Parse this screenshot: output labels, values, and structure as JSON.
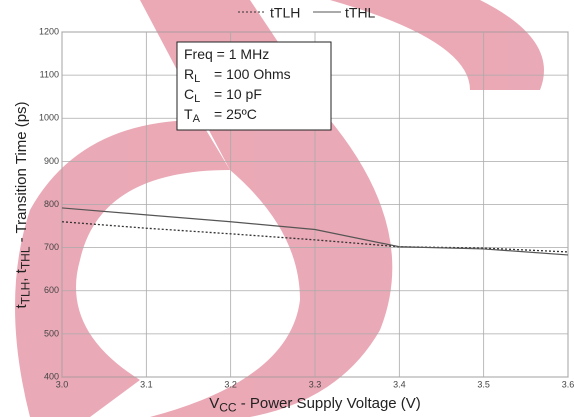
{
  "chart_data": {
    "type": "line",
    "x": [
      3.0,
      3.1,
      3.2,
      3.3,
      3.4,
      3.5,
      3.6
    ],
    "series": [
      {
        "name": "tTLH",
        "color": "#333333",
        "dash": true,
        "values": [
          760,
          745,
          732,
          718,
          702,
          699,
          690
        ]
      },
      {
        "name": "tTHL",
        "color": "#555555",
        "dash": false,
        "values": [
          792,
          776,
          760,
          742,
          702,
          697,
          683
        ]
      }
    ],
    "xlim": [
      3.0,
      3.6
    ],
    "xticks": [
      {
        "value": 3.0,
        "label": "3.0"
      },
      3.1,
      3.2,
      3.3,
      3.4,
      3.5,
      3.6
    ],
    "ylim": [
      400,
      1200
    ],
    "yticks": [
      400,
      500,
      600,
      700,
      800,
      900,
      1000,
      1100,
      1200
    ],
    "grid": true,
    "xlabel": [
      "V",
      "CC",
      " - Power Supply Voltage (V)"
    ],
    "ylabel": [
      "t",
      "TLH",
      ", t",
      "THL",
      " - Transition Time (ps)"
    ],
    "annotations": [
      [
        "Freq = 1 MHz"
      ],
      [
        "R",
        "L",
        "= 100 Ohms"
      ],
      [
        "C",
        "L",
        "= 10 pF"
      ],
      [
        "T",
        "A",
        "= 25ºC"
      ]
    ]
  }
}
